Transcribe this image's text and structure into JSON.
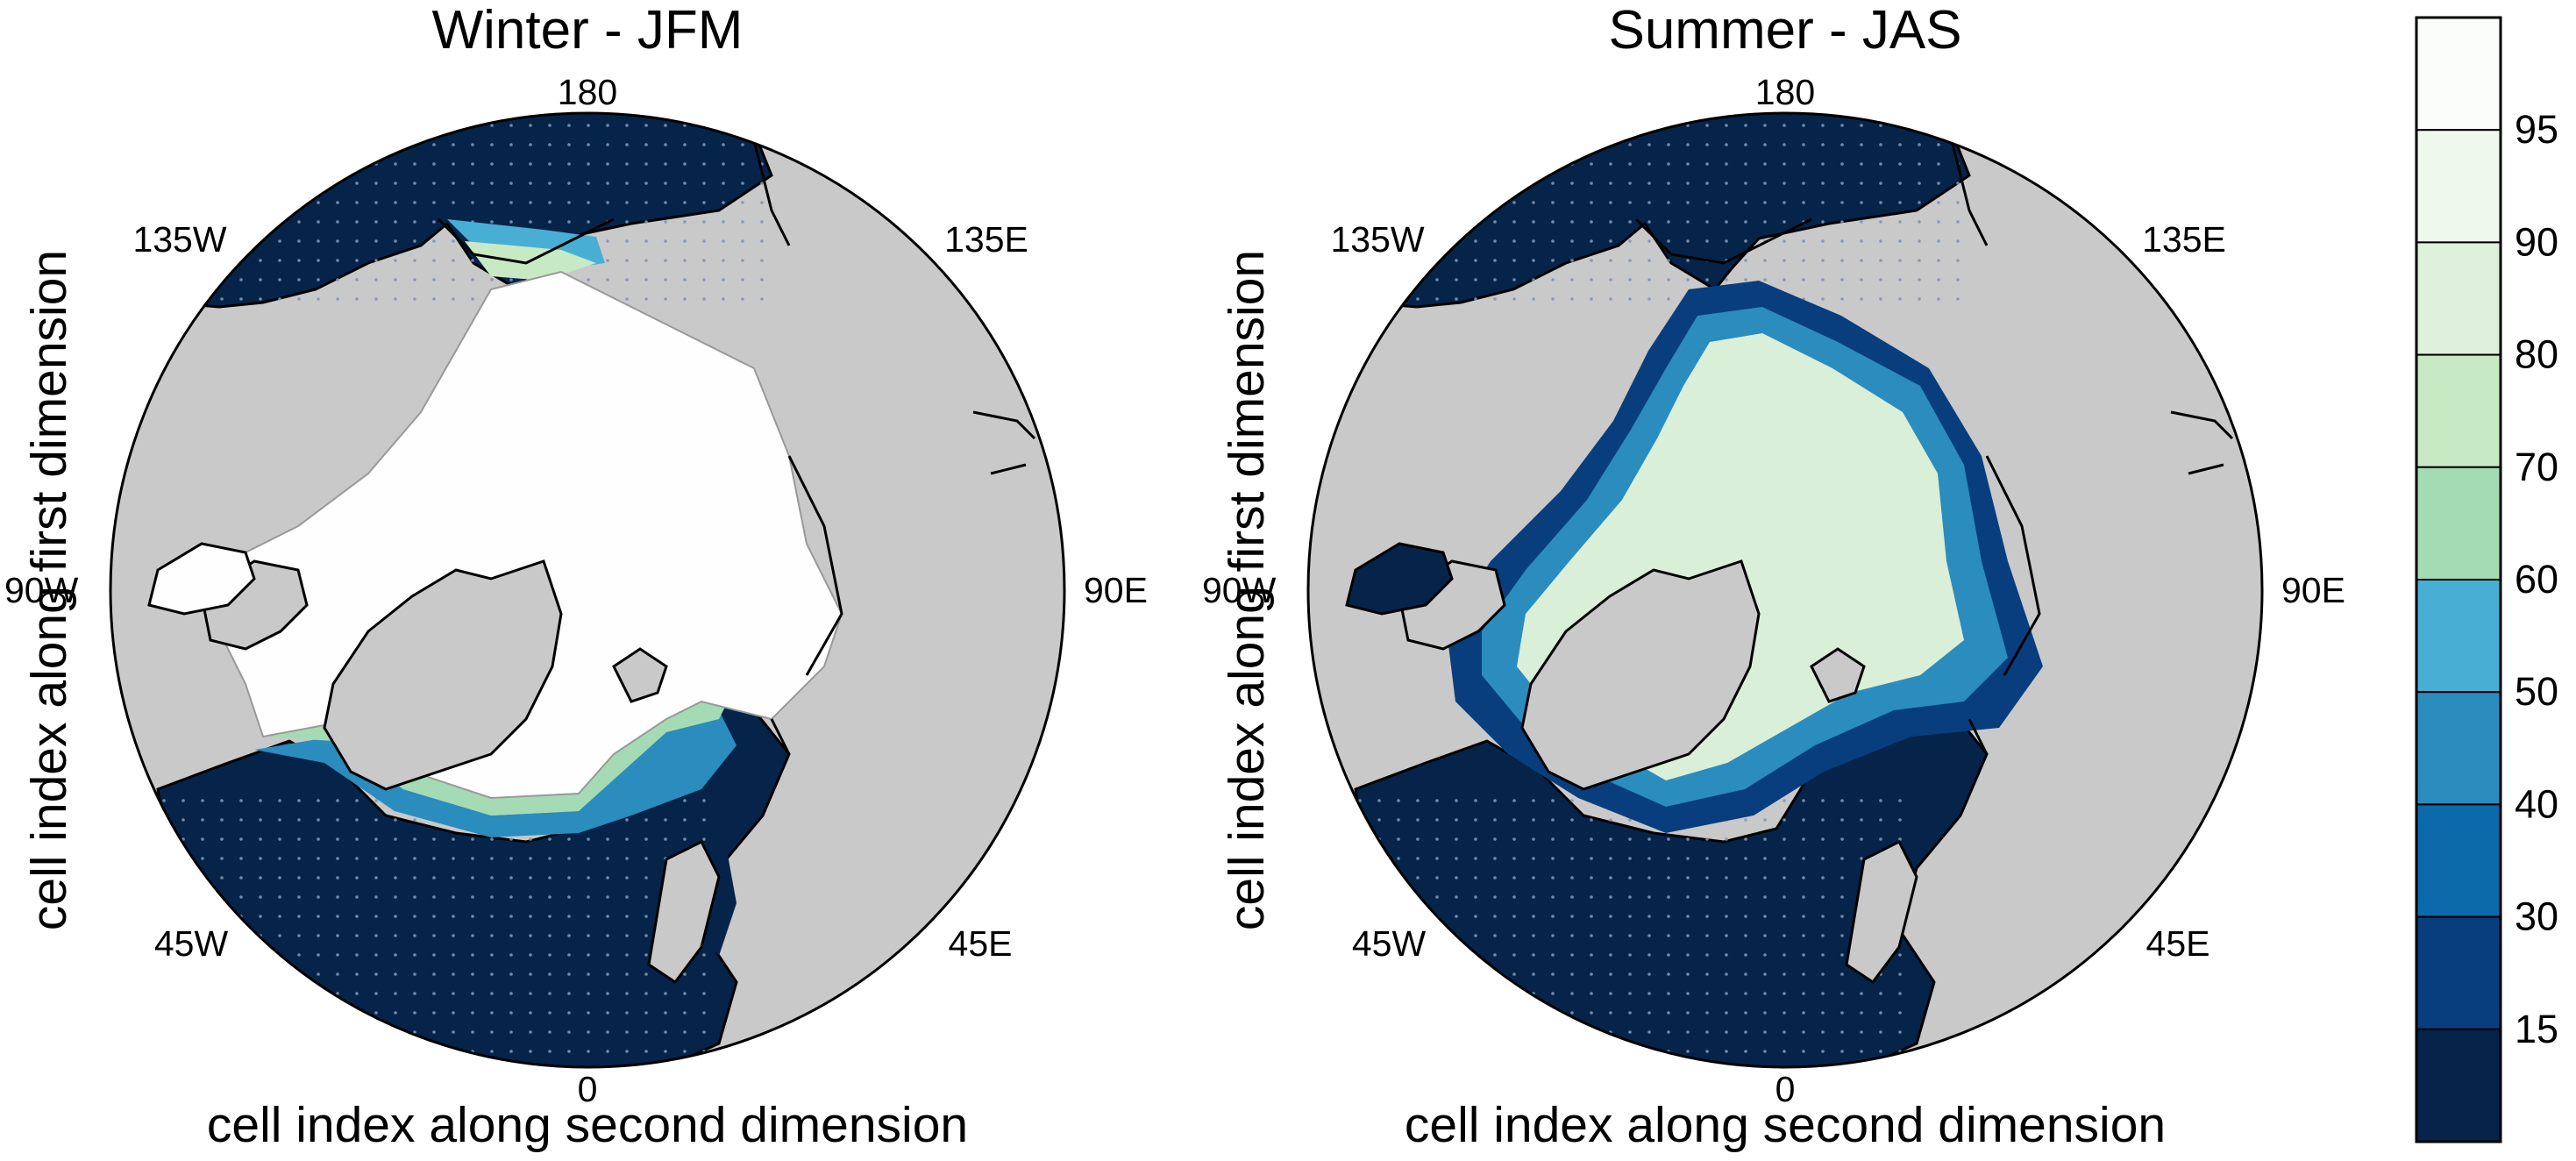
{
  "panels": [
    {
      "title": "Winter - JFM",
      "lon_labels": {
        "top": "180",
        "upper_left": "135W",
        "upper_right": "135E",
        "left": "90W",
        "right": "90E",
        "lower_left": "45W",
        "lower_right": "45E",
        "bottom": "0"
      },
      "xlabel": "cell index along second dimension",
      "ylabel": "cell index along first dimension"
    },
    {
      "title": "Summer - JAS",
      "lon_labels": {
        "top": "180",
        "upper_left": "135W",
        "upper_right": "135E",
        "left": "90W",
        "right": "90E",
        "lower_left": "45W",
        "lower_right": "45E",
        "bottom": "0"
      },
      "xlabel": "cell index along second dimension",
      "ylabel": "cell index along first dimension"
    }
  ],
  "colorbar": {
    "labels": [
      "95",
      "90",
      "80",
      "70",
      "60",
      "50",
      "40",
      "30",
      "15"
    ],
    "colors": [
      "#fbfdfb",
      "#eff8ed",
      "#ddf1db",
      "#c7e9c4",
      "#a5dbb4",
      "#49aed4",
      "#2b8cbe",
      "#0c69aa",
      "#083e7e",
      "#06244a"
    ]
  },
  "colors": {
    "land": "#c9c9c9",
    "open_water": "#06244a",
    "ice_winter": "#fdfefd",
    "ice_summer": "#d9efd7"
  }
}
